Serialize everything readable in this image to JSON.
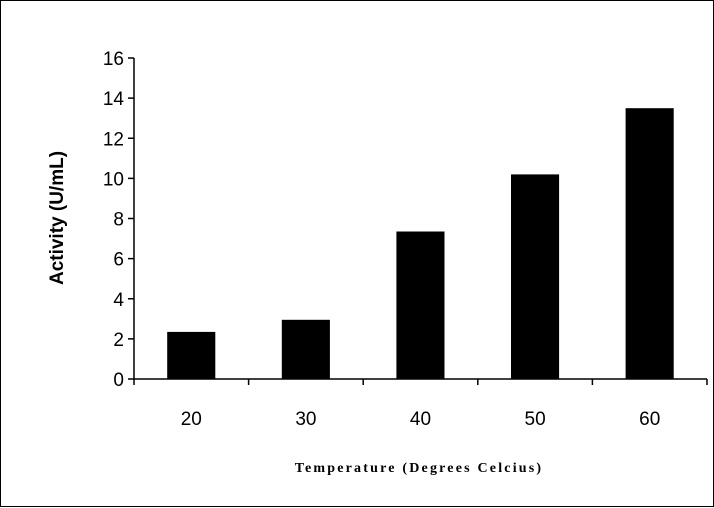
{
  "chart_data": {
    "type": "bar",
    "title": "",
    "categories": [
      "20",
      "30",
      "40",
      "50",
      "60"
    ],
    "values": [
      2.35,
      2.95,
      7.35,
      10.2,
      13.5
    ],
    "xlabel": "Temperature (Degrees Celcius)",
    "ylabel": "Activity (U/mL)",
    "ylim": [
      0,
      16
    ],
    "yticks": [
      0,
      2,
      4,
      6,
      8,
      10,
      12,
      14,
      16
    ],
    "grid": false,
    "legend": "none",
    "bar_color": "#000000"
  }
}
